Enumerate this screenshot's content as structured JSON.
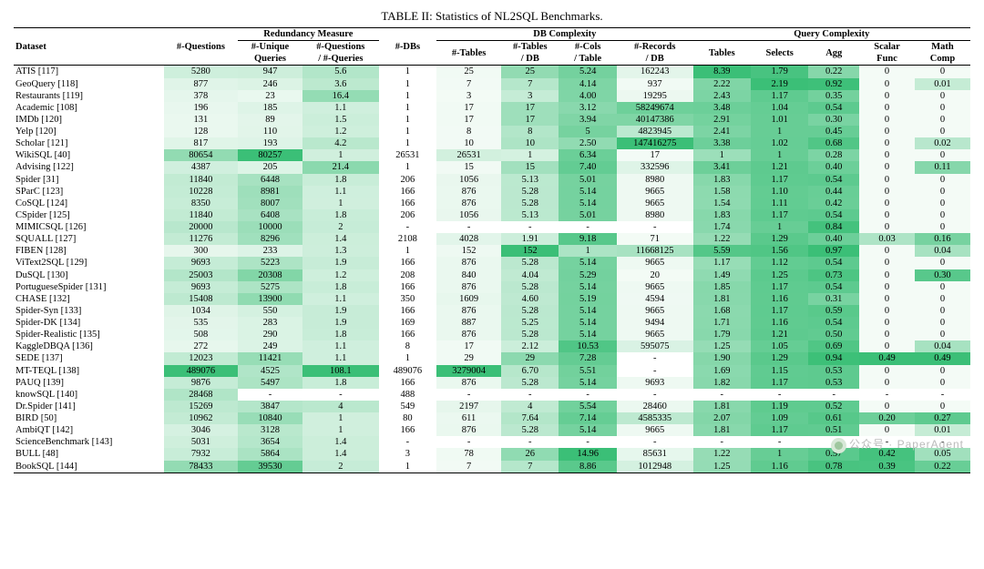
{
  "caption": "TABLE II: Statistics of NL2SQL Benchmarks.",
  "watermark": "公众号 · PaperAgent",
  "headers": {
    "dataset": "Dataset",
    "questions": "#-Questions",
    "group_redundancy": "Redundancy Measure",
    "uniq": "#-Unique\nQueries",
    "qpq": "#-Questions\n/ #-Queries",
    "dbs": "#-DBs",
    "group_db": "DB Complexity",
    "tables": "#-Tables",
    "tpd": "#-Tables\n/ DB",
    "cpt": "#-Cols\n/ Table",
    "rpd": "#-Records\n/ DB",
    "group_query": "Query Complexity",
    "qt": "Tables",
    "sel": "Selects",
    "agg": "Agg",
    "scal": "Scalar\nFunc",
    "math": "Math\nComp"
  },
  "heat": {
    "columns": [
      1,
      2,
      3,
      5,
      6,
      7,
      8,
      9,
      10,
      11,
      12,
      13
    ],
    "palette_lo": "#f4fbf6",
    "palette_mid": "#bfe8cf",
    "palette_hi": "#3bbf77",
    "max": {
      "1": 489076,
      "2": 80257,
      "3": 108.1,
      "5": 3279004,
      "6": 152,
      "7": 14.96,
      "8": 147416275,
      "9": 8.39,
      "10": 2.19,
      "11": 0.97,
      "12": 0.49,
      "13": 0.49
    }
  },
  "rows": [
    [
      "ATIS [117]",
      "5280",
      "947",
      "5.6",
      "1",
      "25",
      "25",
      "5.24",
      "162243",
      "8.39",
      "1.79",
      "0.22",
      "0",
      "0"
    ],
    [
      "GeoQuery [118]",
      "877",
      "246",
      "3.6",
      "1",
      "7",
      "7",
      "4.14",
      "937",
      "2.22",
      "2.19",
      "0.92",
      "0",
      "0.01"
    ],
    [
      "Restaurants [119]",
      "378",
      "23",
      "16.4",
      "1",
      "3",
      "3",
      "4.00",
      "19295",
      "2.43",
      "1.17",
      "0.35",
      "0",
      "0"
    ],
    [
      "Academic [108]",
      "196",
      "185",
      "1.1",
      "1",
      "17",
      "17",
      "3.12",
      "58249674",
      "3.48",
      "1.04",
      "0.54",
      "0",
      "0"
    ],
    [
      "IMDb [120]",
      "131",
      "89",
      "1.5",
      "1",
      "17",
      "17",
      "3.94",
      "40147386",
      "2.91",
      "1.01",
      "0.30",
      "0",
      "0"
    ],
    [
      "Yelp [120]",
      "128",
      "110",
      "1.2",
      "1",
      "8",
      "8",
      "5",
      "4823945",
      "2.41",
      "1",
      "0.45",
      "0",
      "0"
    ],
    [
      "Scholar [121]",
      "817",
      "193",
      "4.2",
      "1",
      "10",
      "10",
      "2.50",
      "147416275",
      "3.38",
      "1.02",
      "0.68",
      "0",
      "0.02"
    ],
    [
      "WikiSQL [40]",
      "80654",
      "80257",
      "1",
      "26531",
      "26531",
      "1",
      "6.34",
      "17",
      "1",
      "1",
      "0.28",
      "0",
      "0"
    ],
    [
      "Advising [122]",
      "4387",
      "205",
      "21.4",
      "1",
      "15",
      "15",
      "7.40",
      "332596",
      "3.41",
      "1.21",
      "0.40",
      "0",
      "0.11"
    ],
    [
      "Spider [31]",
      "11840",
      "6448",
      "1.8",
      "206",
      "1056",
      "5.13",
      "5.01",
      "8980",
      "1.83",
      "1.17",
      "0.54",
      "0",
      "0"
    ],
    [
      "SParC [123]",
      "10228",
      "8981",
      "1.1",
      "166",
      "876",
      "5.28",
      "5.14",
      "9665",
      "1.58",
      "1.10",
      "0.44",
      "0",
      "0"
    ],
    [
      "CoSQL [124]",
      "8350",
      "8007",
      "1",
      "166",
      "876",
      "5.28",
      "5.14",
      "9665",
      "1.54",
      "1.11",
      "0.42",
      "0",
      "0"
    ],
    [
      "CSpider [125]",
      "11840",
      "6408",
      "1.8",
      "206",
      "1056",
      "5.13",
      "5.01",
      "8980",
      "1.83",
      "1.17",
      "0.54",
      "0",
      "0"
    ],
    [
      "MIMICSQL [126]",
      "20000",
      "10000",
      "2",
      "-",
      "-",
      "-",
      "-",
      "-",
      "1.74",
      "1",
      "0.84",
      "0",
      "0"
    ],
    [
      "SQUALL [127]",
      "11276",
      "8296",
      "1.4",
      "2108",
      "4028",
      "1.91",
      "9.18",
      "71",
      "1.22",
      "1.29",
      "0.40",
      "0.03",
      "0.16"
    ],
    [
      "FIBEN [128]",
      "300",
      "233",
      "1.3",
      "1",
      "152",
      "152",
      "1",
      "11668125",
      "5.59",
      "1.56",
      "0.97",
      "0",
      "0.04"
    ],
    [
      "ViText2SQL [129]",
      "9693",
      "5223",
      "1.9",
      "166",
      "876",
      "5.28",
      "5.14",
      "9665",
      "1.17",
      "1.12",
      "0.54",
      "0",
      "0"
    ],
    [
      "DuSQL [130]",
      "25003",
      "20308",
      "1.2",
      "208",
      "840",
      "4.04",
      "5.29",
      "20",
      "1.49",
      "1.25",
      "0.73",
      "0",
      "0.30"
    ],
    [
      "PortugueseSpider [131]",
      "9693",
      "5275",
      "1.8",
      "166",
      "876",
      "5.28",
      "5.14",
      "9665",
      "1.85",
      "1.17",
      "0.54",
      "0",
      "0"
    ],
    [
      "CHASE [132]",
      "15408",
      "13900",
      "1.1",
      "350",
      "1609",
      "4.60",
      "5.19",
      "4594",
      "1.81",
      "1.16",
      "0.31",
      "0",
      "0"
    ],
    [
      "Spider-Syn [133]",
      "1034",
      "550",
      "1.9",
      "166",
      "876",
      "5.28",
      "5.14",
      "9665",
      "1.68",
      "1.17",
      "0.59",
      "0",
      "0"
    ],
    [
      "Spider-DK [134]",
      "535",
      "283",
      "1.9",
      "169",
      "887",
      "5.25",
      "5.14",
      "9494",
      "1.71",
      "1.16",
      "0.54",
      "0",
      "0"
    ],
    [
      "Spider-Realistic [135]",
      "508",
      "290",
      "1.8",
      "166",
      "876",
      "5.28",
      "5.14",
      "9665",
      "1.79",
      "1.21",
      "0.50",
      "0",
      "0"
    ],
    [
      "KaggleDBQA [136]",
      "272",
      "249",
      "1.1",
      "8",
      "17",
      "2.12",
      "10.53",
      "595075",
      "1.25",
      "1.05",
      "0.69",
      "0",
      "0.04"
    ],
    [
      "SEDE [137]",
      "12023",
      "11421",
      "1.1",
      "1",
      "29",
      "29",
      "7.28",
      "-",
      "1.90",
      "1.29",
      "0.94",
      "0.49",
      "0.49"
    ],
    [
      "MT-TEQL [138]",
      "489076",
      "4525",
      "108.1",
      "489076",
      "3279004",
      "6.70",
      "5.51",
      "-",
      "1.69",
      "1.15",
      "0.53",
      "0",
      "0"
    ],
    [
      "PAUQ [139]",
      "9876",
      "5497",
      "1.8",
      "166",
      "876",
      "5.28",
      "5.14",
      "9693",
      "1.82",
      "1.17",
      "0.53",
      "0",
      "0"
    ],
    [
      "knowSQL [140]",
      "28468",
      "-",
      "-",
      "488",
      "-",
      "-",
      "-",
      "-",
      "-",
      "-",
      "-",
      "-",
      "-"
    ],
    [
      "Dr.Spider [141]",
      "15269",
      "3847",
      "4",
      "549",
      "2197",
      "4",
      "5.54",
      "28460",
      "1.81",
      "1.19",
      "0.52",
      "0",
      "0"
    ],
    [
      "BIRD [50]",
      "10962",
      "10840",
      "1",
      "80",
      "611",
      "7.64",
      "7.14",
      "4585335",
      "2.07",
      "1.09",
      "0.61",
      "0.20",
      "0.27"
    ],
    [
      "AmbiQT [142]",
      "3046",
      "3128",
      "1",
      "166",
      "876",
      "5.28",
      "5.14",
      "9665",
      "1.81",
      "1.17",
      "0.51",
      "0",
      "0.01"
    ],
    [
      "ScienceBenchmark [143]",
      "5031",
      "3654",
      "1.4",
      "-",
      "-",
      "-",
      "-",
      "-",
      "-",
      "-",
      "-",
      "-",
      "-"
    ],
    [
      "BULL [48]",
      "7932",
      "5864",
      "1.4",
      "3",
      "78",
      "26",
      "14.96",
      "85631",
      "1.22",
      "1",
      "0.57",
      "0.42",
      "0.05"
    ],
    [
      "BookSQL [144]",
      "78433",
      "39530",
      "2",
      "1",
      "7",
      "7",
      "8.86",
      "1012948",
      "1.25",
      "1.16",
      "0.78",
      "0.39",
      "0.22"
    ]
  ]
}
